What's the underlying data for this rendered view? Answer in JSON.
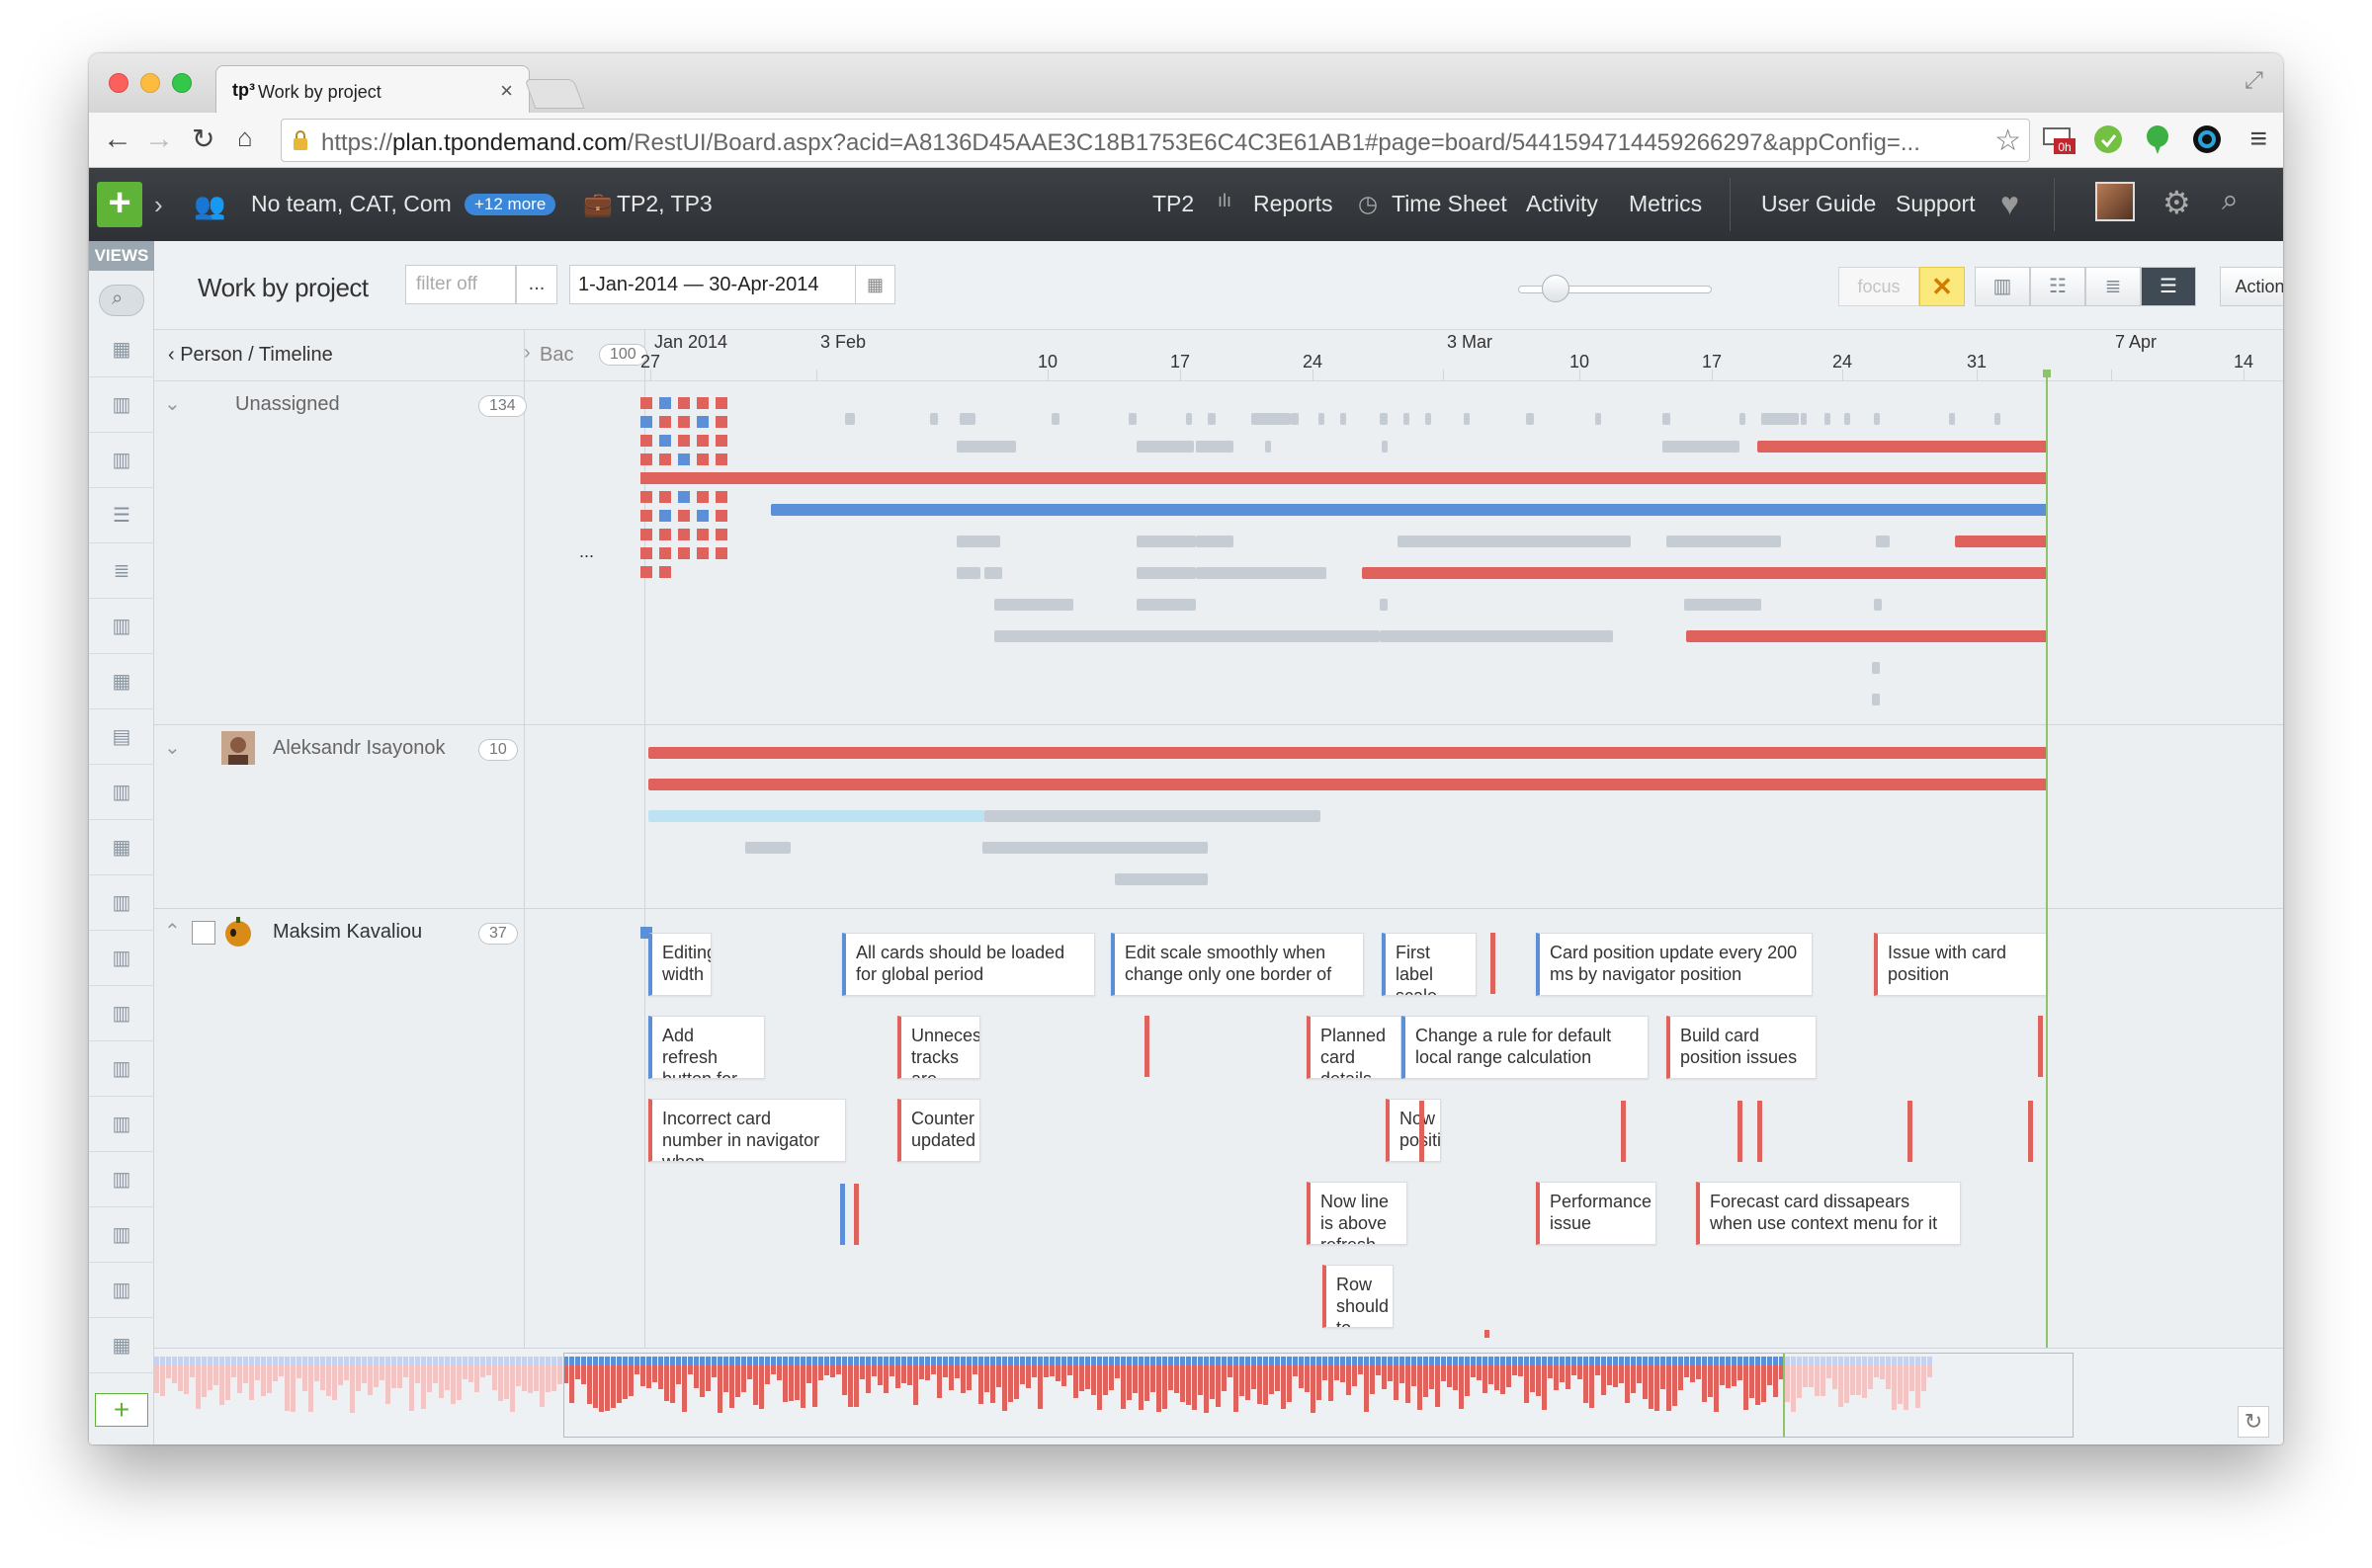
{
  "browser": {
    "tab_logo": "tp³",
    "tab_title": "Work by project",
    "tab_close": "×",
    "url_scheme": "https://",
    "url_host": "plan.tpondemand.com",
    "url_path": "/RestUI/Board.aspx?acid=A8136D45AAE3C18B1753E6C4C3E61AB1#page=board/5441594714459266297&appConfig=...",
    "ext_badge": "0h"
  },
  "app_header": {
    "context": "No team, CAT, Com",
    "more_badge": "+12 more",
    "projects": "TP2, TP3",
    "nav": [
      "TP2",
      "Reports",
      "Time Sheet",
      "Activity",
      "Metrics"
    ],
    "right_links": [
      "User Guide",
      "Support"
    ]
  },
  "views_panel": {
    "label": "VIEWS",
    "add": "+"
  },
  "toolbar": {
    "title": "Work by project",
    "filter_placeholder": "filter off",
    "filter_more": "...",
    "date_range": "1-Jan-2014 — 30-Apr-2014",
    "zoom_level": 0.15,
    "focus": "focus",
    "focus_clear": "✕",
    "actions": "Actions"
  },
  "timeline": {
    "row_header": "Person / Timeline",
    "backlog_label": "Bac",
    "backlog_count": "100",
    "ticks": [
      {
        "top": "Jan 2014",
        "bottom": "27"
      },
      {
        "top": "3 Feb",
        "bottom": ""
      },
      {
        "top": "",
        "bottom": "10"
      },
      {
        "top": "",
        "bottom": "17"
      },
      {
        "top": "",
        "bottom": "24"
      },
      {
        "top": "3 Mar",
        "bottom": ""
      },
      {
        "top": "",
        "bottom": "10"
      },
      {
        "top": "",
        "bottom": "17"
      },
      {
        "top": "",
        "bottom": "24"
      },
      {
        "top": "",
        "bottom": "31"
      },
      {
        "top": "7 Apr",
        "bottom": ""
      },
      {
        "top": "",
        "bottom": "14"
      }
    ]
  },
  "lanes": [
    {
      "name": "Unassigned",
      "count": "134"
    },
    {
      "name": "Aleksandr Isayonok",
      "count": "10"
    },
    {
      "name": "Maksim Kavaliou",
      "count": "37"
    }
  ],
  "backlog_more": "...",
  "cards": [
    "Editing width",
    "All cards should be loaded for global period",
    "Edit scale smoothly when change only one border of",
    "First label scale should",
    "Card position update every 200 ms by navigator position",
    "Issue with card position",
    "Add refresh button for",
    "Unnecessary tracks are",
    "Planned card details are",
    "Change a rule for default local range calculation",
    "Build card position issues",
    "Incorrect card number in navigator when",
    "Counter updated",
    "Now position",
    "Now line is above refresh",
    "Performance issue",
    "Forecast card dissapears when use context menu for it",
    "Row should to min h"
  ],
  "colors": {
    "red": "#e0625d",
    "blue": "#5b8fd8",
    "gray": "#c5ccd3",
    "green": "#5fb336",
    "today": "#8fc36a"
  }
}
